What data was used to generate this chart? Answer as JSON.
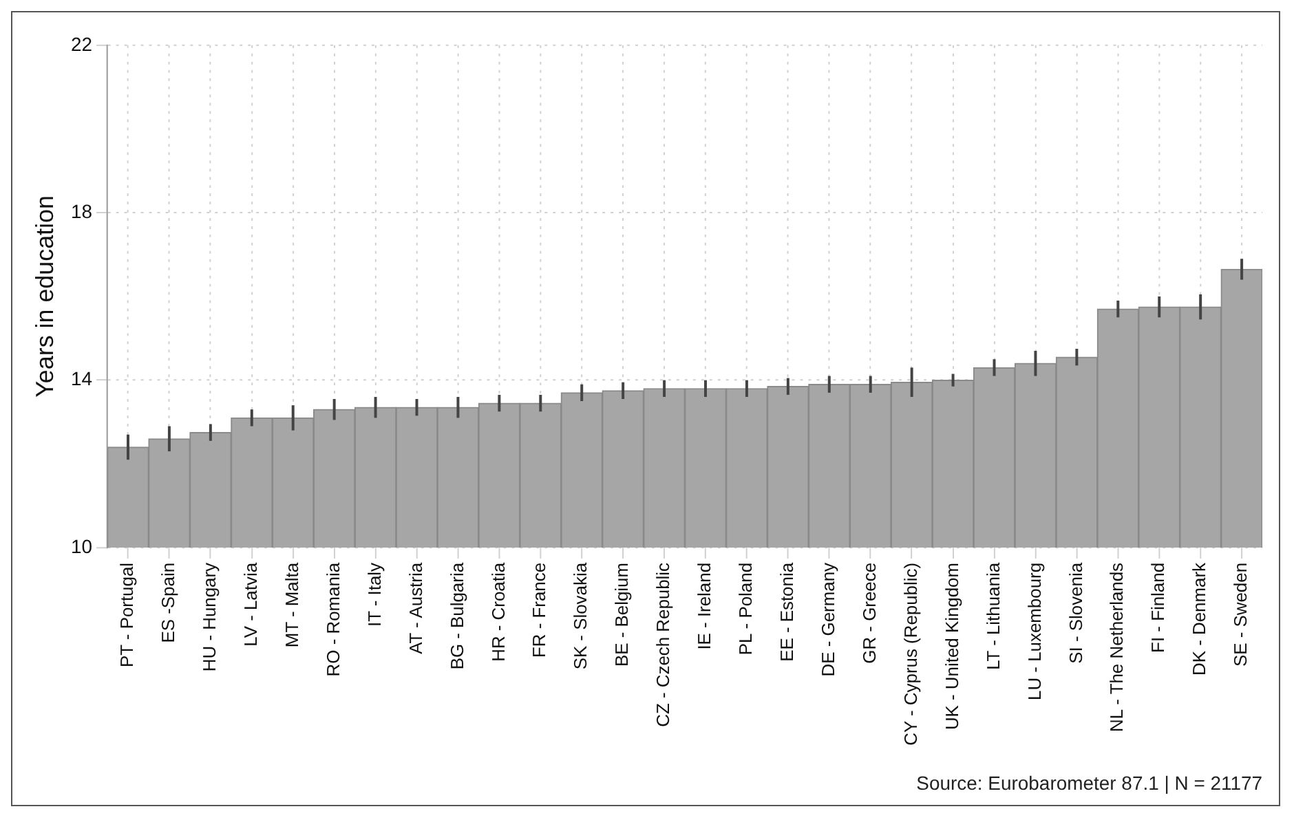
{
  "chart_data": {
    "type": "bar",
    "ylabel": "Years in education",
    "categories": [
      "PT - Portugal",
      "ES -Spain",
      "HU - Hungary",
      "LV - Latvia",
      "MT - Malta",
      "RO - Romania",
      "IT - Italy",
      "AT - Austria",
      "BG - Bulgaria",
      "HR - Croatia",
      "FR - France",
      "SK - Slovakia",
      "BE - Belgium",
      "CZ - Czech Republic",
      "IE - Ireland",
      "PL - Poland",
      "EE - Estonia",
      "DE - Germany",
      "GR - Greece",
      "CY - Cyprus (Republic)",
      "UK - United Kingdom",
      "LT - Lithuania",
      "LU - Luxembourg",
      "SI - Slovenia",
      "NL - The Netherlands",
      "FI - Finland",
      "DK - Denmark",
      "SE - Sweden"
    ],
    "values": [
      12.4,
      12.6,
      12.75,
      13.1,
      13.1,
      13.3,
      13.35,
      13.35,
      13.35,
      13.45,
      13.45,
      13.7,
      13.75,
      13.8,
      13.8,
      13.8,
      13.85,
      13.9,
      13.9,
      13.95,
      14.0,
      14.3,
      14.4,
      14.55,
      15.7,
      15.75,
      15.75,
      16.65
    ],
    "errors": [
      0.3,
      0.3,
      0.2,
      0.2,
      0.3,
      0.25,
      0.25,
      0.2,
      0.25,
      0.2,
      0.2,
      0.2,
      0.2,
      0.2,
      0.2,
      0.2,
      0.2,
      0.2,
      0.2,
      0.35,
      0.15,
      0.2,
      0.3,
      0.2,
      0.2,
      0.25,
      0.3,
      0.25
    ],
    "color": "#a6a6a6",
    "ylim": [
      10,
      22
    ],
    "yticks": [
      10,
      14,
      18,
      22
    ],
    "grid": true,
    "annotations": [
      "Source: Eurobarometer 87.1 | N = 21177"
    ]
  }
}
